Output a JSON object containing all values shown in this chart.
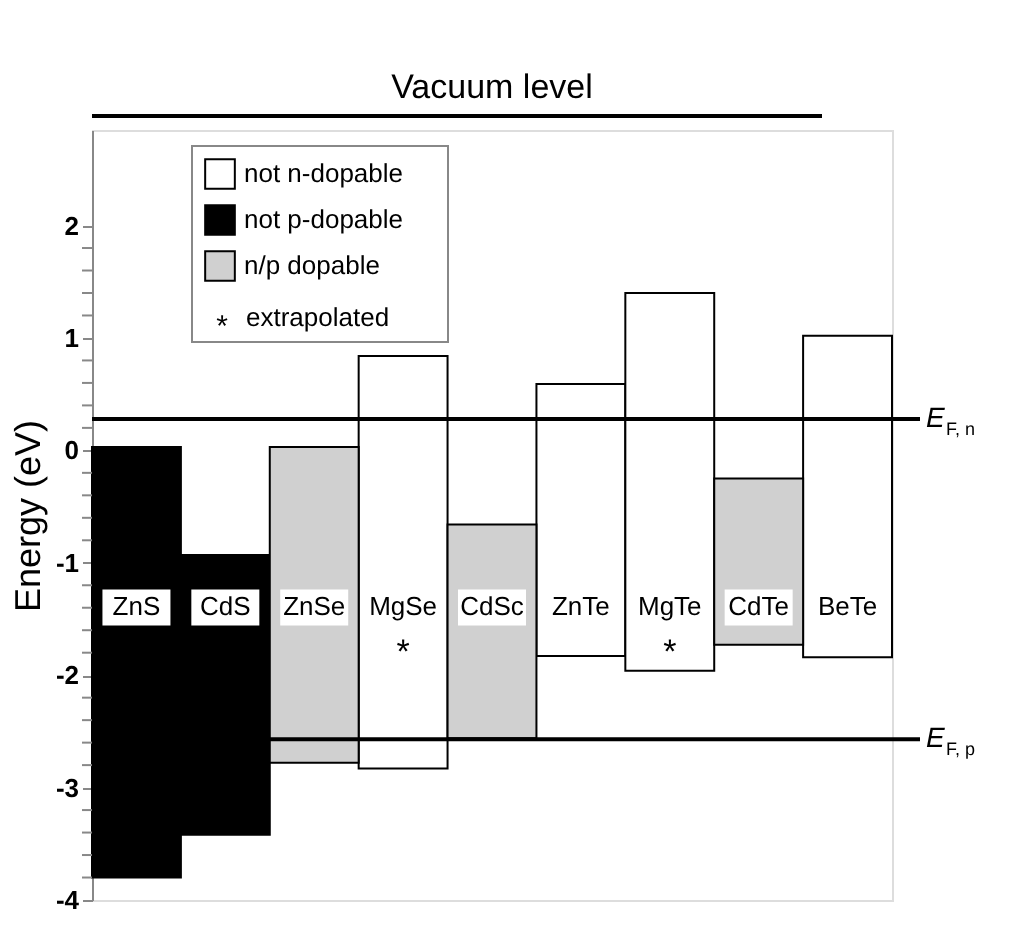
{
  "chart_data": {
    "type": "bar",
    "ylabel": "Energy (eV)",
    "categories": [
      "ZnS",
      "CdS",
      "ZnSe",
      "MgSe",
      "CdSc",
      "ZnTe",
      "MgTe",
      "CdTe",
      "BeTe"
    ],
    "series": [
      {
        "name": "not n-dopable",
        "color": "#ffffff",
        "base": [
          null,
          null,
          null,
          -2.83,
          null,
          -1.83,
          -1.96,
          null,
          -1.84
        ],
        "values": [
          null,
          null,
          null,
          3.67,
          null,
          2.42,
          3.36,
          null,
          2.86
        ]
      },
      {
        "name": "not p-dopable",
        "color": "#000000",
        "base": [
          -3.8,
          -3.42,
          null,
          null,
          null,
          null,
          null,
          null,
          null
        ],
        "values": [
          3.83,
          2.49,
          null,
          null,
          null,
          null,
          null,
          null,
          null
        ]
      },
      {
        "name": "n/p dopable",
        "color": "#d0d0d0",
        "base": [
          null,
          null,
          -2.78,
          null,
          -2.56,
          null,
          null,
          -1.73,
          null
        ],
        "values": [
          null,
          null,
          2.81,
          null,
          1.9,
          null,
          null,
          1.48,
          null
        ]
      }
    ],
    "ylim": [
      -4,
      2.85
    ],
    "yticks": [
      -4,
      {
        "value": -3.8,
        "label": null
      },
      {
        "value": -3.6,
        "label": null
      },
      {
        "value": -3.4,
        "label": null
      },
      {
        "value": -3.2,
        "label": null
      },
      -3,
      {
        "value": -2.8,
        "label": null
      },
      {
        "value": -2.6,
        "label": null
      },
      {
        "value": -2.4,
        "label": null
      },
      {
        "value": -2.2,
        "label": null
      },
      -2,
      {
        "value": -1.8,
        "label": null
      },
      {
        "value": -1.6,
        "label": null
      },
      {
        "value": -1.4,
        "label": null
      },
      {
        "value": -1.2,
        "label": null
      },
      -1,
      {
        "value": -0.8,
        "label": null
      },
      {
        "value": -0.6,
        "label": null
      },
      {
        "value": -0.4,
        "label": null
      },
      {
        "value": -0.2,
        "label": null
      },
      0,
      {
        "value": 0.2,
        "label": null
      },
      {
        "value": 0.4,
        "label": null
      },
      {
        "value": 0.6,
        "label": null
      },
      {
        "value": 0.8,
        "label": null
      },
      1,
      {
        "value": 1.2,
        "label": null
      },
      {
        "value": 1.4,
        "label": null
      },
      {
        "value": 1.6,
        "label": null
      },
      {
        "value": 1.8,
        "label": null
      },
      2
    ],
    "ref_lines": [
      {
        "axis": "y",
        "value": 0.28,
        "label": "E$_{F, n}$"
      },
      {
        "axis": "y",
        "value": -2.57,
        "label": "E$_{F, p}$"
      }
    ],
    "annotations": [
      "Vacuum level",
      "* extrapolated",
      "*",
      "*"
    ],
    "tick_labels": "y",
    "legend": "top left",
    "grid": false
  }
}
